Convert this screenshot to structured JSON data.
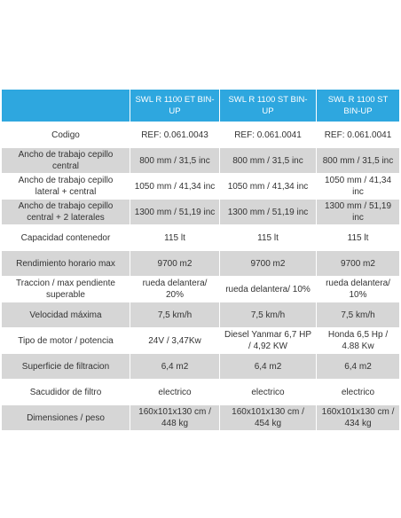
{
  "table": {
    "header": [
      "SWL R 1100 ET BIN-UP",
      "SWL R 1100 ST BIN-UP",
      "SWL R 1100 ST BIN-UP"
    ],
    "rows": [
      [
        "Codigo",
        "REF: 0.061.0043",
        "REF: 0.061.0041",
        "REF: 0.061.0041"
      ],
      [
        "Ancho de trabajo cepillo central",
        "800 mm / 31,5 inc",
        "800 mm / 31,5 inc",
        "800 mm / 31,5 inc"
      ],
      [
        "Ancho de trabajo cepillo lateral + central",
        "1050 mm / 41,34 inc",
        "1050 mm / 41,34 inc",
        "1050 mm / 41,34 inc"
      ],
      [
        "Ancho de trabajo cepillo central + 2 laterales",
        "1300 mm / 51,19 inc",
        "1300 mm / 51,19 inc",
        "1300 mm / 51,19 inc"
      ],
      [
        "Capacidad contenedor",
        "115 lt",
        "115 lt",
        "115 lt"
      ],
      [
        "Rendimiento horario max",
        "9700 m2",
        "9700 m2",
        "9700 m2"
      ],
      [
        "Traccion / max pendiente superable",
        "rueda delantera/ 20%",
        "rueda delantera/ 10%",
        "rueda delantera/ 10%"
      ],
      [
        "Velocidad máxima",
        "7,5 km/h",
        "7,5 km/h",
        "7,5 km/h"
      ],
      [
        "Tipo de motor / potencia",
        "24V / 3,47Kw",
        "Diesel Yanmar 6,7 HP / 4,92 KW",
        "Honda 6,5 Hp / 4.88 Kw"
      ],
      [
        "Superficie de filtracion",
        "6,4 m2",
        "6,4 m2",
        "6,4 m2"
      ],
      [
        "Sacudidor de filtro",
        "electrico",
        "electrico",
        "electrico"
      ],
      [
        "Dimensiones / peso",
        "160x101x130 cm / 448 kg",
        "160x101x130 cm / 454 kg",
        "160x101x130 cm / 434 kg"
      ]
    ]
  }
}
